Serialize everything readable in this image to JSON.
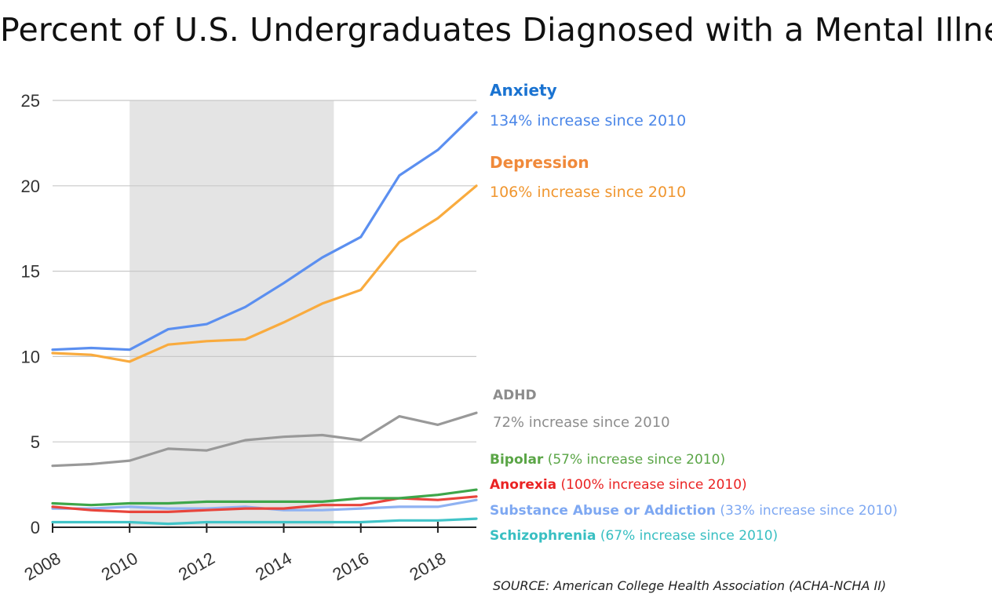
{
  "chart_data": {
    "type": "line",
    "title": "Percent of U.S. Undergraduates Diagnosed with a Mental Illness",
    "xlabel": "",
    "ylabel": "",
    "x": [
      2008,
      2009,
      2010,
      2011,
      2012,
      2013,
      2014,
      2015,
      2016,
      2017,
      2018,
      2019
    ],
    "x_ticks": [
      2008,
      2010,
      2012,
      2014,
      2016,
      2018
    ],
    "x_tick_labels": [
      "2008",
      "2010",
      "2012",
      "2014",
      "2016",
      "2018"
    ],
    "xlim": [
      2008,
      2019
    ],
    "ylim": [
      0,
      25
    ],
    "y_ticks": [
      0,
      5,
      10,
      15,
      20,
      25
    ],
    "y_tick_labels": [
      "0",
      "5",
      "10",
      "15",
      "20",
      "25"
    ],
    "grid": true,
    "shaded_region": [
      2010,
      2015.3
    ],
    "series": [
      {
        "name": "Anxiety",
        "color": "#5b8ff0",
        "annotation": "134% increase since 2010",
        "values": [
          10.4,
          10.5,
          10.4,
          11.6,
          11.9,
          12.9,
          14.3,
          15.8,
          17.0,
          20.6,
          22.1,
          24.3
        ]
      },
      {
        "name": "Depression",
        "color": "#f9ab3e",
        "annotation": "106% increase since 2010",
        "values": [
          10.2,
          10.1,
          9.7,
          10.7,
          10.9,
          11.0,
          12.0,
          13.1,
          13.9,
          16.7,
          18.1,
          20.0
        ]
      },
      {
        "name": "ADHD",
        "color": "#999999",
        "annotation": "72% increase since 2010",
        "values": [
          3.6,
          3.7,
          3.9,
          4.6,
          4.5,
          5.1,
          5.3,
          5.4,
          5.1,
          6.5,
          6.0,
          6.7
        ]
      },
      {
        "name": "Bipolar",
        "color": "#3ea64a",
        "annotation": "(57% increase since 2010)",
        "values": [
          1.4,
          1.3,
          1.4,
          1.4,
          1.5,
          1.5,
          1.5,
          1.5,
          1.7,
          1.7,
          1.9,
          2.2
        ]
      },
      {
        "name": "Anorexia",
        "color": "#e8453c",
        "annotation": "(100% increase since 2010)",
        "values": [
          1.2,
          1.0,
          0.9,
          0.9,
          1.0,
          1.1,
          1.1,
          1.3,
          1.3,
          1.7,
          1.6,
          1.8
        ]
      },
      {
        "name": "Substance Abuse or Addiction",
        "color": "#8fb2f2",
        "annotation": "(33% increase since 2010)",
        "values": [
          1.1,
          1.1,
          1.2,
          1.1,
          1.1,
          1.2,
          1.0,
          1.0,
          1.1,
          1.2,
          1.2,
          1.6
        ]
      },
      {
        "name": "Schizophrenia",
        "color": "#41c4c8",
        "annotation": "(67% increase since 2010)",
        "values": [
          0.3,
          0.3,
          0.3,
          0.2,
          0.3,
          0.3,
          0.3,
          0.3,
          0.3,
          0.4,
          0.4,
          0.5
        ]
      }
    ]
  },
  "labels": {
    "anxiety_name": "Anxiety",
    "anxiety_change": "134% increase since 2010",
    "anxiety_color": "#1a73d1",
    "anxiety_sub_color": "#4a86e8",
    "depression_name": "Depression",
    "depression_change": "106% increase since 2010",
    "depression_color": "#f0893a",
    "depression_sub_color": "#f0962f",
    "adhd_name": "ADHD",
    "adhd_change": "72% increase since 2010",
    "adhd_color": "#8c8c8c",
    "bipolar_name": "Bipolar",
    "bipolar_change": "(57% increase since 2010)",
    "bipolar_color": "#5aa546",
    "anorexia_name": "Anorexia",
    "anorexia_change": "(100% increase since 2010)",
    "anorexia_color": "#ea2323",
    "substance_name": "Substance Abuse or Addiction",
    "substance_change": "(33% increase since 2010)",
    "substance_color": "#7ea8f2",
    "schizophrenia_name": "Schizophrenia",
    "schizophrenia_change": "(67% increase since 2010)",
    "schizophrenia_color": "#38bfc2"
  },
  "source": "SOURCE: American College Health Association (ACHA-NCHA II)"
}
